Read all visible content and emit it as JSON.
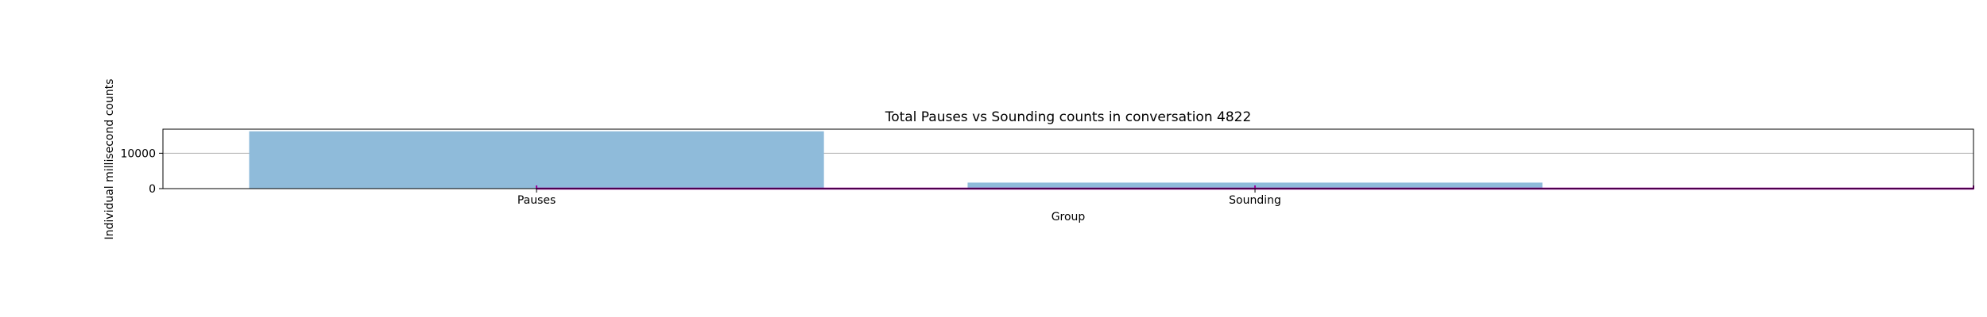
{
  "chart_data": {
    "type": "bar",
    "title": "Total Pauses vs Sounding counts in conversation 4822",
    "xlabel": "Group",
    "ylabel": "Individual millisecond counts",
    "categories": [
      "Pauses",
      "Sounding"
    ],
    "values": [
      16200,
      1700
    ],
    "ylim": [
      0,
      16800
    ],
    "yticks": [
      0,
      10000
    ],
    "ytick_labels": [
      "0",
      "10000"
    ],
    "grid": "y",
    "legend": "none",
    "bar_color": "#8fbbda",
    "overlay_line": {
      "color": "#9b009b",
      "values": [
        0,
        0,
        0
      ]
    }
  }
}
